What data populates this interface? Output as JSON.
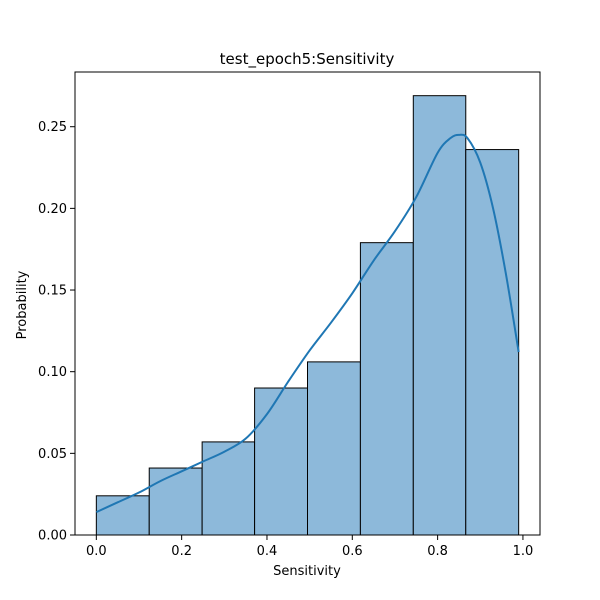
{
  "chart_data": {
    "type": "histogram",
    "title": "test_epoch5:Sensitivity",
    "xlabel": "Sensitivity",
    "ylabel": "Probability",
    "xlim": [
      -0.05,
      1.04
    ],
    "ylim": [
      0,
      0.2835
    ],
    "xticks": [
      0.0,
      0.2,
      0.4,
      0.6,
      0.8,
      1.0
    ],
    "xtick_labels": [
      "0.0",
      "0.2",
      "0.4",
      "0.6",
      "0.8",
      "1.0"
    ],
    "yticks": [
      0.0,
      0.05,
      0.1,
      0.15,
      0.2,
      0.25
    ],
    "ytick_labels": [
      "0.00",
      "0.05",
      "0.10",
      "0.15",
      "0.20",
      "0.25"
    ],
    "bin_edges": [
      0.0,
      0.124,
      0.248,
      0.371,
      0.495,
      0.619,
      0.743,
      0.866,
      0.99
    ],
    "values": [
      0.024,
      0.041,
      0.057,
      0.09,
      0.106,
      0.179,
      0.269,
      0.236
    ],
    "kde": {
      "x": [
        0.0,
        0.05,
        0.1,
        0.15,
        0.2,
        0.25,
        0.3,
        0.35,
        0.4,
        0.45,
        0.5,
        0.55,
        0.6,
        0.65,
        0.7,
        0.75,
        0.8,
        0.83,
        0.85,
        0.87,
        0.9,
        0.93,
        0.96,
        0.99
      ],
      "y": [
        0.014,
        0.02,
        0.026,
        0.033,
        0.039,
        0.045,
        0.051,
        0.059,
        0.074,
        0.094,
        0.113,
        0.13,
        0.148,
        0.168,
        0.186,
        0.207,
        0.234,
        0.243,
        0.245,
        0.243,
        0.228,
        0.2,
        0.16,
        0.112
      ]
    },
    "bar_fill": "#8db9da",
    "bar_edge": "#000000",
    "line_color": "#1f77b4",
    "grid": false,
    "legend": "none"
  }
}
